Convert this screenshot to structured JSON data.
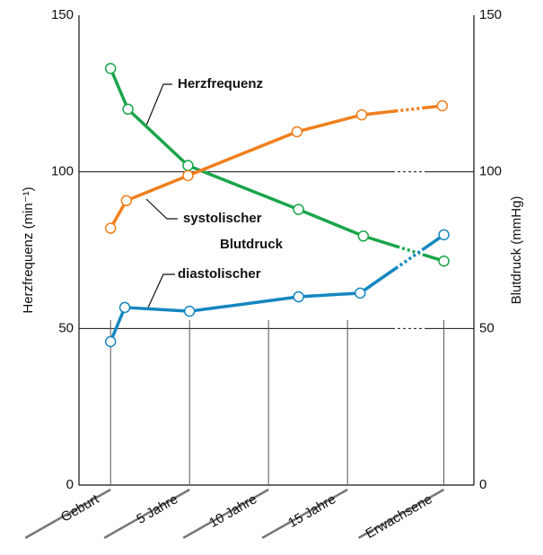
{
  "chart_data": {
    "type": "line",
    "y_label": "Herzfrequenz (min⁻¹)",
    "y2_label": "Blutdruck (mmHg)",
    "annotation": "Blutdruck",
    "xlim": [
      -2,
      23
    ],
    "xticks": [
      {
        "value": 0,
        "label": "Geburt"
      },
      {
        "value": 5,
        "label": "5 Jahre"
      },
      {
        "value": 10,
        "label": "10 Jahre"
      },
      {
        "value": 15,
        "label": "15 Jahre"
      },
      {
        "value": 21.1,
        "label": "Erwachsene"
      }
    ],
    "ylim": [
      0,
      150
    ],
    "yticks": [
      0,
      50,
      100,
      150
    ],
    "y2lim": [
      0,
      150
    ],
    "y2ticks": [
      0,
      50,
      100,
      150
    ],
    "grid": true,
    "series": [
      {
        "name": "Herzfrequenz",
        "color": "#1aa54a",
        "x": [
          0,
          1.1,
          4.9,
          11.9,
          16,
          21.1
        ],
        "values": [
          133,
          120,
          102,
          88,
          79.5,
          71.5
        ]
      },
      {
        "name": "systolischer",
        "color": "#f07f1c",
        "axis": "y2",
        "x": [
          0,
          1,
          4.9,
          11.8,
          15.9,
          21
        ],
        "values": [
          82,
          90.8,
          98.8,
          112.8,
          118.2,
          121.1
        ]
      },
      {
        "name": "diastolischer",
        "color": "#1487c0",
        "axis": "y2",
        "x": [
          0,
          0.9,
          5,
          11.9,
          15.8,
          21.1
        ],
        "values": [
          45.8,
          56.7,
          55.5,
          60.1,
          61.3,
          79.9
        ]
      }
    ]
  }
}
